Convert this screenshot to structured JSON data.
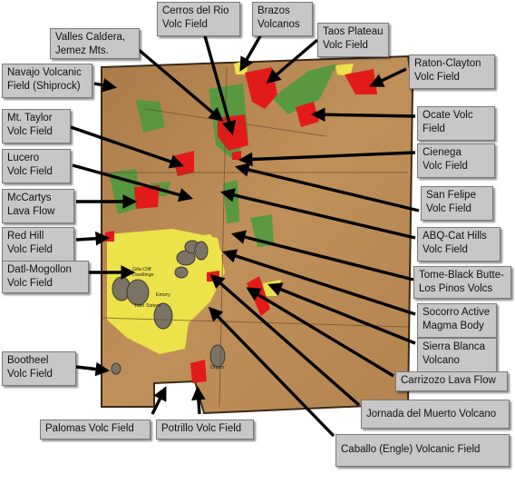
{
  "labels": {
    "cerros_del_rio": "Cerros del Rio\nVolc Field",
    "brazos": "Brazos\nVolcanos",
    "valles": "Valles Caldera,\nJemez Mts.",
    "taos": "Taos Plateau\nVolc Field",
    "raton": "Raton-Clayton\nVolc Field",
    "navajo": "Navajo Volcanic\nField (Shiprock)",
    "mt_taylor": "Mt. Taylor\nVolc Field",
    "ocate": "Ocate  Volc\nField",
    "lucero": "Lucero\nVolc Field",
    "cienega": "Cienega\nVolc Field",
    "mccartys": "McCartys\nLava Flow",
    "san_felipe": "San Felipe\nVolc Field",
    "red_hill": "Red Hill\nVolc Field",
    "abq": "ABQ-Cat Hills\nVolc Field",
    "datl": "Datl-Mogollon\nVolc Field",
    "tome": "Tome-Black Butte-\nLos Pinos Volcs",
    "socorro": "Socorro Active\nMagma Body",
    "sierra_blanca": "Sierra Blanca\nVolcano",
    "bootheel": "Bootheel\nVolc Field",
    "carrizozo": "Carrizozo Lava Flow",
    "jornada": "Jornada del Muerto Volcano",
    "palomas": "Palomas Volc Field",
    "potrillo": "Potrillo Volc Field",
    "caballo": "Caballo (Engle) Volcanic Field"
  },
  "map_annotations": {
    "gila": "Gila Cliff\nDwellings",
    "twin_sisters": "Twin Sisters",
    "emory": "Emory",
    "organ": "Organ"
  },
  "colors": {
    "terrain": "#b9854f",
    "forest": "#4f9a3e",
    "lava": "#e31a1a",
    "tuff": "#ece24a",
    "caldera": "#7b7364",
    "label_bg": "#c7c7c7",
    "arrow": "#000000"
  }
}
